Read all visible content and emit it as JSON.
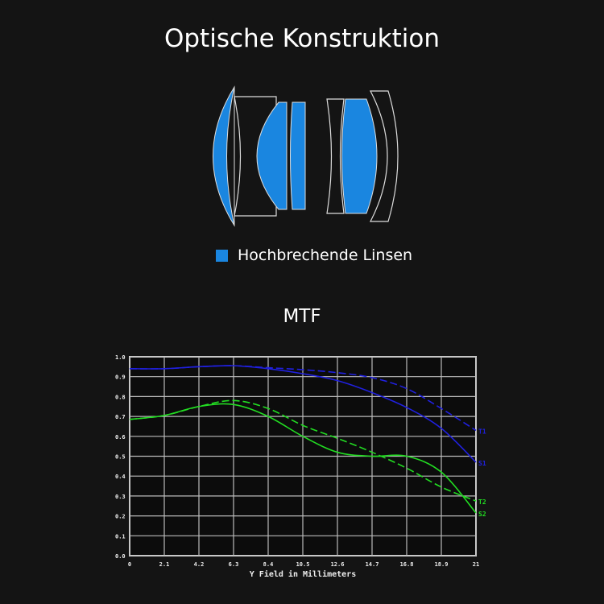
{
  "title": "Optische Konstruktion",
  "legend": {
    "label": "Hochbrechende Linsen",
    "color": "#1a86e0"
  },
  "chart_data": {
    "type": "line",
    "title": "MTF",
    "xlabel": "Y Field in Millimeters",
    "ylabel": "",
    "xlim": [
      0,
      21
    ],
    "ylim": [
      0,
      1
    ],
    "grid": true,
    "x": [
      0,
      2.1,
      4.2,
      6.3,
      8.4,
      10.5,
      12.6,
      14.7,
      16.8,
      18.9,
      21
    ],
    "x_tick_labels": [
      "0",
      "2.1",
      "4.2",
      "6.3",
      "8.4",
      "10.5",
      "12.6",
      "14.7",
      "16.8",
      "18.9",
      "21"
    ],
    "y_tick_labels": [
      "0.0",
      "0.1",
      "0.2",
      "0.3",
      "0.4",
      "0.5",
      "0.6",
      "0.7",
      "0.8",
      "0.9",
      "1.0"
    ],
    "series": [
      {
        "name": "T1",
        "color": "#2020e0",
        "dashed": true,
        "values": [
          0.94,
          0.94,
          0.95,
          0.955,
          0.945,
          0.935,
          0.92,
          0.895,
          0.84,
          0.74,
          0.63
        ]
      },
      {
        "name": "S1",
        "color": "#2020e0",
        "dashed": false,
        "values": [
          0.94,
          0.94,
          0.95,
          0.955,
          0.94,
          0.915,
          0.88,
          0.82,
          0.745,
          0.64,
          0.47
        ]
      },
      {
        "name": "T2",
        "color": "#22dd22",
        "dashed": true,
        "values": [
          0.685,
          0.705,
          0.75,
          0.78,
          0.74,
          0.655,
          0.59,
          0.52,
          0.44,
          0.345,
          0.275
        ]
      },
      {
        "name": "S2",
        "color": "#22dd22",
        "dashed": false,
        "values": [
          0.685,
          0.705,
          0.75,
          0.76,
          0.7,
          0.6,
          0.52,
          0.5,
          0.5,
          0.42,
          0.215
        ]
      }
    ]
  }
}
